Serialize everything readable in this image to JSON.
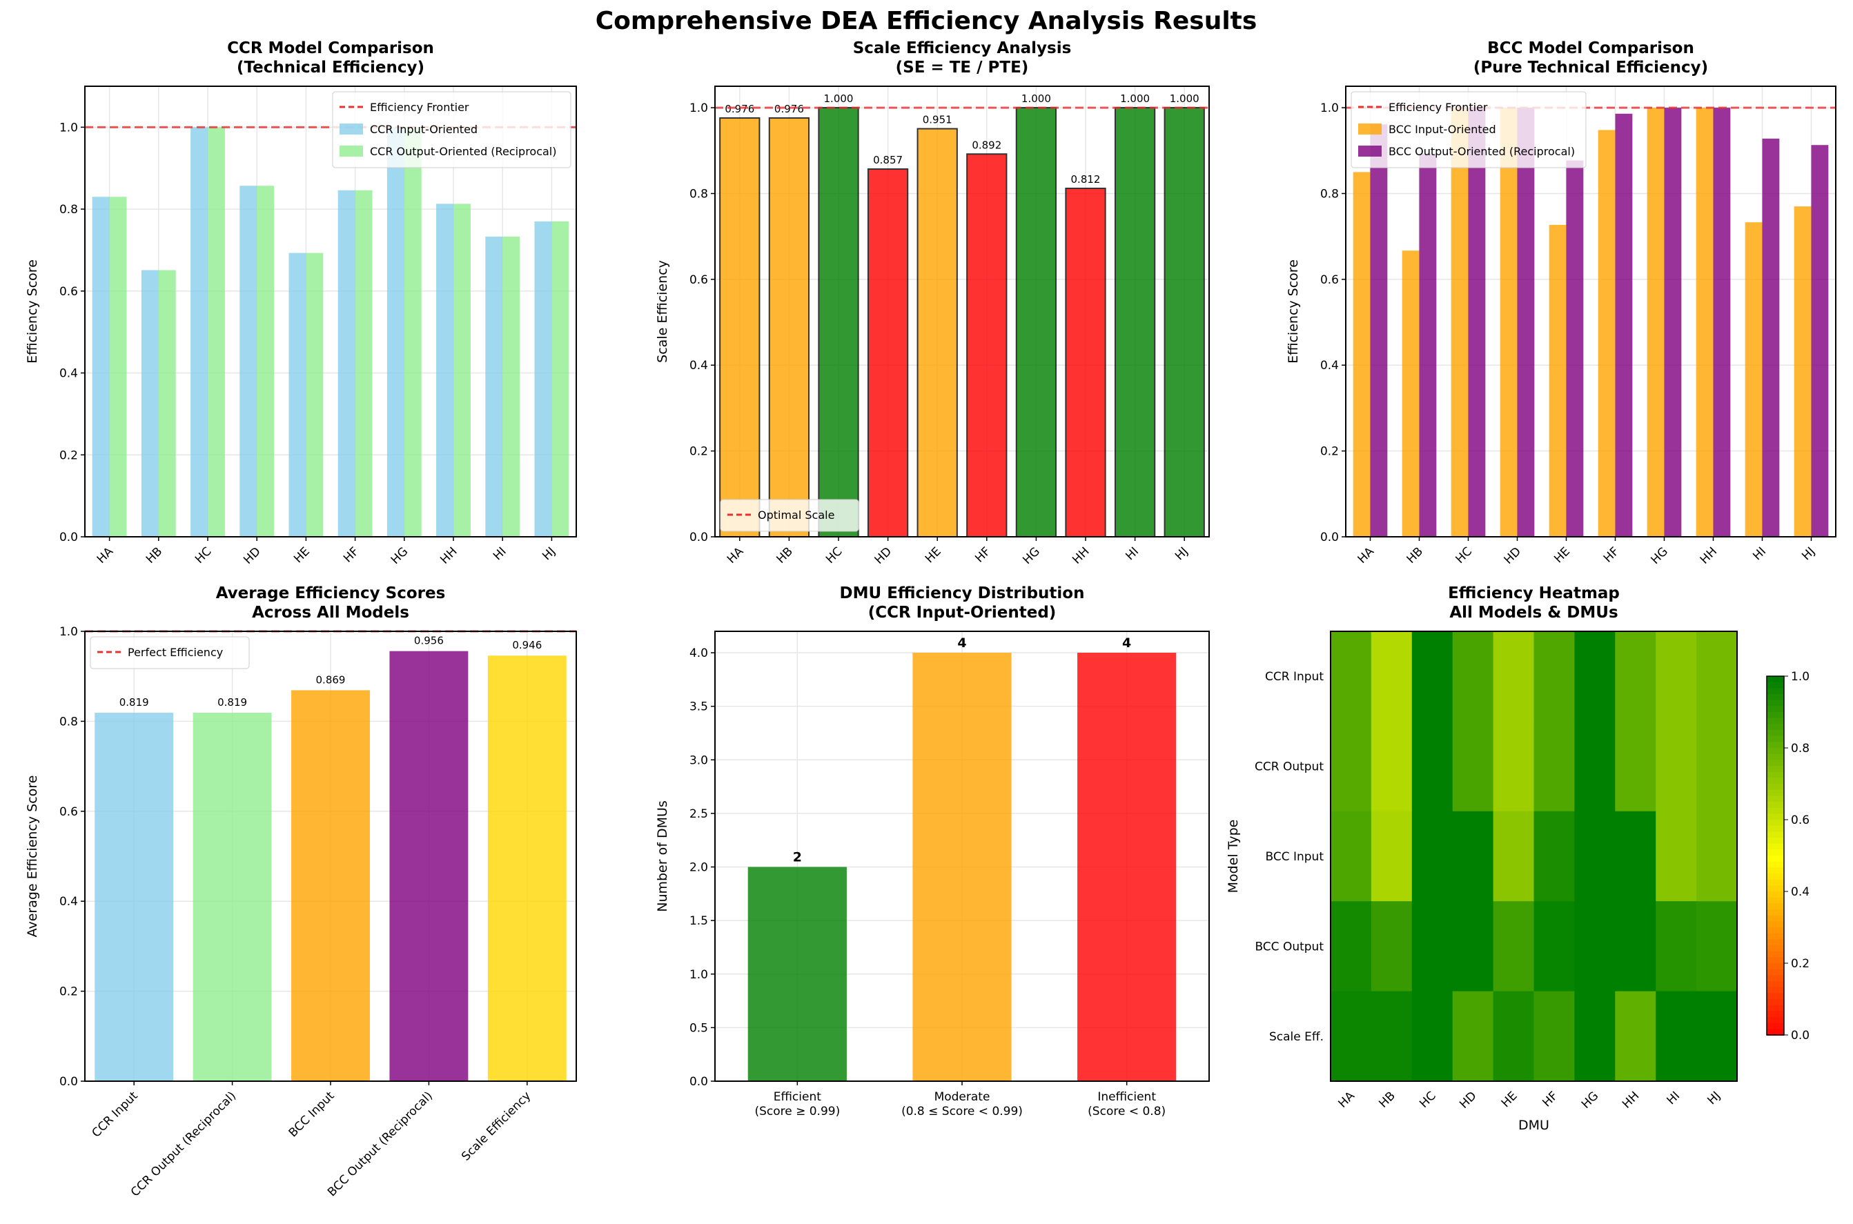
{
  "suptitle": "Comprehensive DEA Efficiency Analysis Results",
  "dmus": [
    "HA",
    "HB",
    "HC",
    "HD",
    "HE",
    "HF",
    "HG",
    "HH",
    "HI",
    "HJ"
  ],
  "chart_data": [
    {
      "id": "ccr",
      "type": "bar",
      "title": [
        "CCR Model Comparison",
        "(Technical Efficiency)"
      ],
      "ylabel": "Efficiency Score",
      "xlabel": "",
      "ylim": [
        0,
        1.1
      ],
      "yticks": [
        0,
        0.2,
        0.4,
        0.6,
        0.8,
        1.0
      ],
      "legend": "top-right",
      "hline": {
        "y": 1.0,
        "label": "Efficiency Frontier",
        "color": "#e83030"
      },
      "series": [
        {
          "name": "CCR Input-Oriented",
          "color": "#87ceeb",
          "values": [
            0.83,
            0.651,
            1.0,
            0.857,
            0.693,
            0.846,
            1.0,
            0.813,
            0.733,
            0.77
          ]
        },
        {
          "name": "CCR Output-Oriented (Reciprocal)",
          "color": "#90ee90",
          "values": [
            0.83,
            0.651,
            1.0,
            0.857,
            0.693,
            0.846,
            1.0,
            0.813,
            0.733,
            0.77
          ]
        }
      ]
    },
    {
      "id": "scale",
      "type": "bar",
      "title": [
        "Scale Efficiency Analysis",
        "(SE = TE / PTE)"
      ],
      "ylabel": "Scale Efficiency",
      "xlabel": "",
      "ylim": [
        0,
        1.05
      ],
      "yticks": [
        0,
        0.2,
        0.4,
        0.6,
        0.8,
        1.0
      ],
      "legend": "bottom-left",
      "hline": {
        "y": 1.0,
        "label": "Optimal Scale",
        "color": "#e83030"
      },
      "values": [
        0.976,
        0.976,
        1.0,
        0.857,
        0.951,
        0.892,
        1.0,
        0.812,
        1.0,
        1.0
      ],
      "labels": [
        "0.976",
        "0.976",
        "1.000",
        "0.857",
        "0.951",
        "0.892",
        "1.000",
        "0.812",
        "1.000",
        "1.000"
      ],
      "colors": [
        "#ffa500",
        "#ffa500",
        "#008000",
        "#ff0000",
        "#ffa500",
        "#ff0000",
        "#008000",
        "#ff0000",
        "#008000",
        "#008000"
      ]
    },
    {
      "id": "bcc",
      "type": "bar",
      "title": [
        "BCC Model Comparison",
        "(Pure Technical Efficiency)"
      ],
      "ylabel": "Efficiency Score",
      "xlabel": "",
      "ylim": [
        0,
        1.05
      ],
      "yticks": [
        0,
        0.2,
        0.4,
        0.6,
        0.8,
        1.0
      ],
      "legend": "top-left",
      "hline": {
        "y": 1.0,
        "label": "Efficiency Frontier",
        "color": "#e83030"
      },
      "series": [
        {
          "name": "BCC Input-Oriented",
          "color": "#ffa500",
          "values": [
            0.85,
            0.667,
            1.0,
            1.0,
            0.727,
            0.948,
            1.0,
            1.0,
            0.733,
            0.77
          ]
        },
        {
          "name": "BCC Output-Oriented (Reciprocal)",
          "color": "#800080",
          "values": [
            0.961,
            0.893,
            1.0,
            1.0,
            0.877,
            0.986,
            1.0,
            1.0,
            0.928,
            0.913
          ]
        }
      ]
    },
    {
      "id": "avg",
      "type": "bar",
      "title": [
        "Average Efficiency Scores",
        "Across All Models"
      ],
      "ylabel": "Average Efficiency Score",
      "xlabel": "",
      "ylim": [
        0,
        1.0
      ],
      "yticks": [
        0,
        0.2,
        0.4,
        0.6,
        0.8,
        1.0
      ],
      "legend": "top-left",
      "hline": {
        "y": 1.0,
        "label": "Perfect Efficiency",
        "color": "#e83030"
      },
      "categories": [
        "CCR Input",
        "CCR Output (Reciprocal)",
        "BCC Input",
        "BCC Output (Reciprocal)",
        "Scale Efficiency"
      ],
      "values": [
        0.819,
        0.819,
        0.869,
        0.956,
        0.946
      ],
      "labels": [
        "0.819",
        "0.819",
        "0.869",
        "0.956",
        "0.946"
      ],
      "colors": [
        "#87ceeb",
        "#90ee90",
        "#ffa500",
        "#800080",
        "#ffd700"
      ]
    },
    {
      "id": "dist",
      "type": "bar",
      "title": [
        "DMU Efficiency Distribution",
        "(CCR Input-Oriented)"
      ],
      "ylabel": "Number of DMUs",
      "xlabel": "",
      "ylim": [
        0,
        4.2
      ],
      "yticks": [
        0,
        0.5,
        1.0,
        1.5,
        2.0,
        2.5,
        3.0,
        3.5,
        4.0
      ],
      "categories": [
        [
          "Efficient",
          "(Score ≥ 0.99)"
        ],
        [
          "Moderate",
          "(0.8 ≤ Score < 0.99)"
        ],
        [
          "Inefficient",
          "(Score < 0.8)"
        ]
      ],
      "values": [
        2,
        4,
        4
      ],
      "labels": [
        "2",
        "4",
        "4"
      ],
      "colors": [
        "#008000",
        "#ffa500",
        "#ff0000"
      ]
    },
    {
      "id": "heat",
      "type": "heatmap",
      "title": [
        "Efficiency Heatmap",
        "All Models & DMUs"
      ],
      "xlabel": "DMU",
      "ylabel": "Model Type",
      "rows": [
        "CCR Input",
        "CCR Output",
        "BCC Input",
        "BCC Output",
        "Scale Eff."
      ],
      "values": [
        [
          0.83,
          0.651,
          1.0,
          0.857,
          0.693,
          0.846,
          1.0,
          0.813,
          0.733,
          0.77
        ],
        [
          0.83,
          0.651,
          1.0,
          0.857,
          0.693,
          0.846,
          1.0,
          0.813,
          0.733,
          0.77
        ],
        [
          0.85,
          0.667,
          1.0,
          1.0,
          0.727,
          0.948,
          1.0,
          1.0,
          0.733,
          0.77
        ],
        [
          0.961,
          0.893,
          1.0,
          1.0,
          0.877,
          0.986,
          1.0,
          1.0,
          0.928,
          0.913
        ],
        [
          0.976,
          0.976,
          1.0,
          0.857,
          0.951,
          0.892,
          1.0,
          0.812,
          1.0,
          1.0
        ]
      ],
      "vlim": [
        0,
        1
      ],
      "colorbar_ticks": [
        "0.0",
        "0.2",
        "0.4",
        "0.6",
        "0.8",
        "1.0"
      ]
    }
  ]
}
